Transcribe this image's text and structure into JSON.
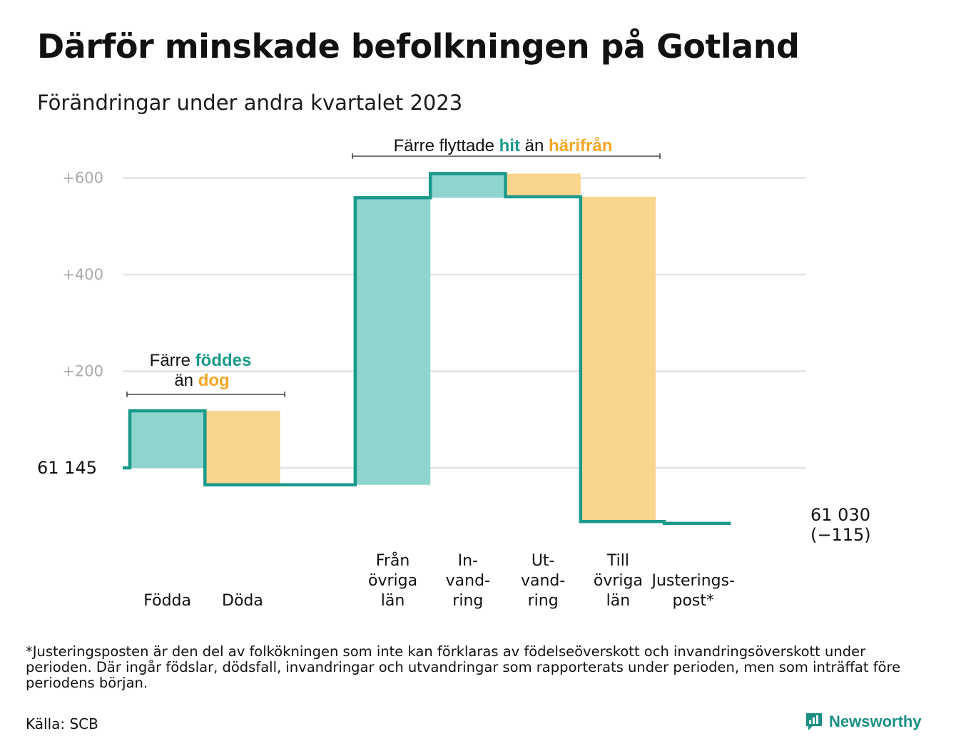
{
  "title": "Därför minskade befolkningen på Gotland",
  "subtitle": "Förändringar under andra kvartalet 2023",
  "colors": {
    "teal": "#1a9a8b",
    "teal_light": "#8dd5cd",
    "orange": "#f5a623",
    "orange_light": "#fad58e",
    "grid": "#e3e3e3"
  },
  "chart_data": {
    "type": "waterfall",
    "start_label": "61  145",
    "start_value": 61145,
    "y_ticks": [
      {
        "value": 200,
        "label": "+200"
      },
      {
        "value": 400,
        "label": "+400"
      },
      {
        "value": 600,
        "label": "+600"
      }
    ],
    "ylim": [
      -120,
      640
    ],
    "grid": true,
    "steps": [
      {
        "lines": [
          "Födda"
        ],
        "change": 118,
        "kind": "in"
      },
      {
        "lines": [
          "Döda"
        ],
        "change": -153,
        "kind": "out"
      },
      {
        "lines": [],
        "change": 0,
        "kind": "gap"
      },
      {
        "lines": [
          "Från",
          "övriga",
          "län"
        ],
        "change": 594,
        "kind": "in"
      },
      {
        "lines": [
          "In-",
          "vand-",
          "ring"
        ],
        "change": 50,
        "kind": "in"
      },
      {
        "lines": [
          "Ut-",
          "vand-",
          "ring"
        ],
        "change": -48,
        "kind": "out"
      },
      {
        "lines": [
          "Till",
          "övriga",
          "län"
        ],
        "change": -672,
        "kind": "out"
      },
      {
        "lines": [
          "Justerings-",
          "post*"
        ],
        "change": -4,
        "kind": "adj"
      }
    ],
    "end_label": "61 030",
    "end_change": "(−115)",
    "annotations": {
      "births": {
        "line1_pre": "Färre ",
        "line1_hl": "föddes",
        "line2_pre": "än ",
        "line2_hl": "dog"
      },
      "migration": {
        "pre": "Färre flyttade ",
        "hl1": "hit",
        "mid": " än ",
        "hl2": "härifrån"
      }
    }
  },
  "footnote": "*Justeringsposten är den del av folkökningen som inte kan förklaras av födelseöverskott och invandringsöverskott under perioden. Där ingår födslar, dödsfall, invandringar och utvandringar som rapporterats under perioden, men som inträffat före periodens början.",
  "source": "Källa: SCB",
  "brand": {
    "name": "Newsworthy",
    "icon": "newsworthy-logo-icon"
  }
}
